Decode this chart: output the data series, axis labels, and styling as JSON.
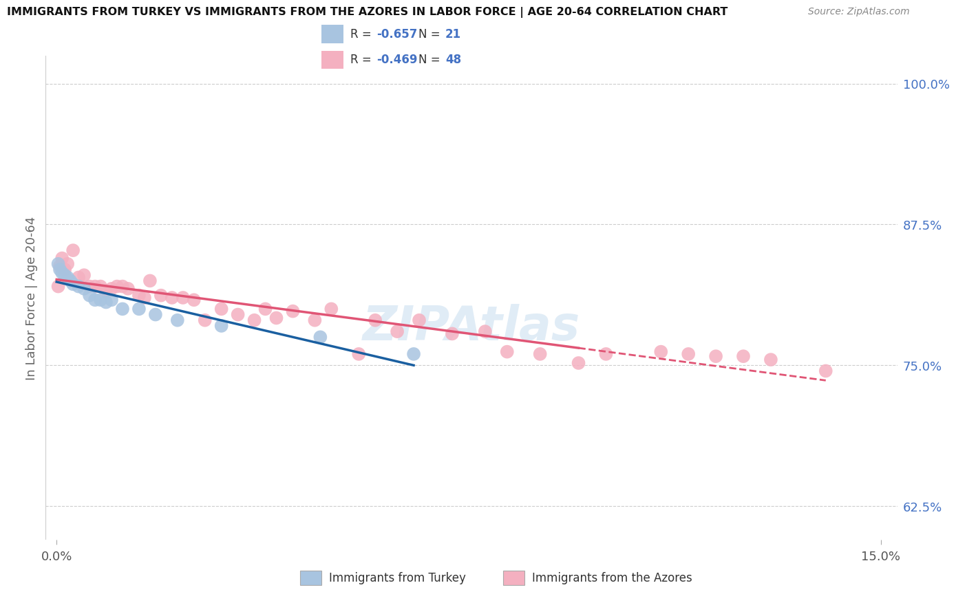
{
  "title": "IMMIGRANTS FROM TURKEY VS IMMIGRANTS FROM THE AZORES IN LABOR FORCE | AGE 20-64 CORRELATION CHART",
  "source": "Source: ZipAtlas.com",
  "ylabel": "In Labor Force | Age 20-64",
  "xlim": [
    -0.002,
    0.153
  ],
  "ylim": [
    0.595,
    1.025
  ],
  "yticks": [
    0.625,
    0.75,
    0.875,
    1.0
  ],
  "ytick_labels": [
    "62.5%",
    "75.0%",
    "87.5%",
    "100.0%"
  ],
  "xticks": [
    0.0,
    0.15
  ],
  "xtick_labels": [
    "0.0%",
    "15.0%"
  ],
  "turkey_R": "-0.657",
  "turkey_N": "21",
  "azores_R": "-0.469",
  "azores_N": "48",
  "turkey_fill": "#a8c4e0",
  "azores_fill": "#f4b0c0",
  "turkey_line": "#1a5fa0",
  "azores_line": "#e05575",
  "legend_label_turkey": "Immigrants from Turkey",
  "legend_label_azores": "Immigrants from the Azores",
  "turkey_x": [
    0.0003,
    0.0006,
    0.001,
    0.0015,
    0.002,
    0.0025,
    0.003,
    0.004,
    0.005,
    0.006,
    0.007,
    0.008,
    0.009,
    0.01,
    0.012,
    0.015,
    0.018,
    0.022,
    0.03,
    0.048,
    0.065
  ],
  "turkey_y": [
    0.84,
    0.835,
    0.832,
    0.83,
    0.828,
    0.825,
    0.822,
    0.82,
    0.818,
    0.812,
    0.808,
    0.808,
    0.806,
    0.808,
    0.8,
    0.8,
    0.795,
    0.79,
    0.785,
    0.775,
    0.76
  ],
  "azores_x": [
    0.0003,
    0.0006,
    0.001,
    0.0015,
    0.002,
    0.003,
    0.004,
    0.005,
    0.006,
    0.007,
    0.008,
    0.009,
    0.01,
    0.011,
    0.012,
    0.013,
    0.015,
    0.016,
    0.017,
    0.019,
    0.021,
    0.023,
    0.025,
    0.027,
    0.03,
    0.033,
    0.036,
    0.038,
    0.04,
    0.043,
    0.047,
    0.05,
    0.055,
    0.058,
    0.062,
    0.066,
    0.072,
    0.078,
    0.082,
    0.088,
    0.095,
    0.1,
    0.11,
    0.115,
    0.12,
    0.125,
    0.13,
    0.14
  ],
  "azores_y": [
    0.82,
    0.838,
    0.845,
    0.835,
    0.84,
    0.852,
    0.828,
    0.83,
    0.82,
    0.82,
    0.82,
    0.815,
    0.818,
    0.82,
    0.82,
    0.818,
    0.812,
    0.81,
    0.825,
    0.812,
    0.81,
    0.81,
    0.808,
    0.79,
    0.8,
    0.795,
    0.79,
    0.8,
    0.792,
    0.798,
    0.79,
    0.8,
    0.76,
    0.79,
    0.78,
    0.79,
    0.778,
    0.78,
    0.762,
    0.76,
    0.752,
    0.76,
    0.762,
    0.76,
    0.758,
    0.758,
    0.755,
    0.745
  ]
}
